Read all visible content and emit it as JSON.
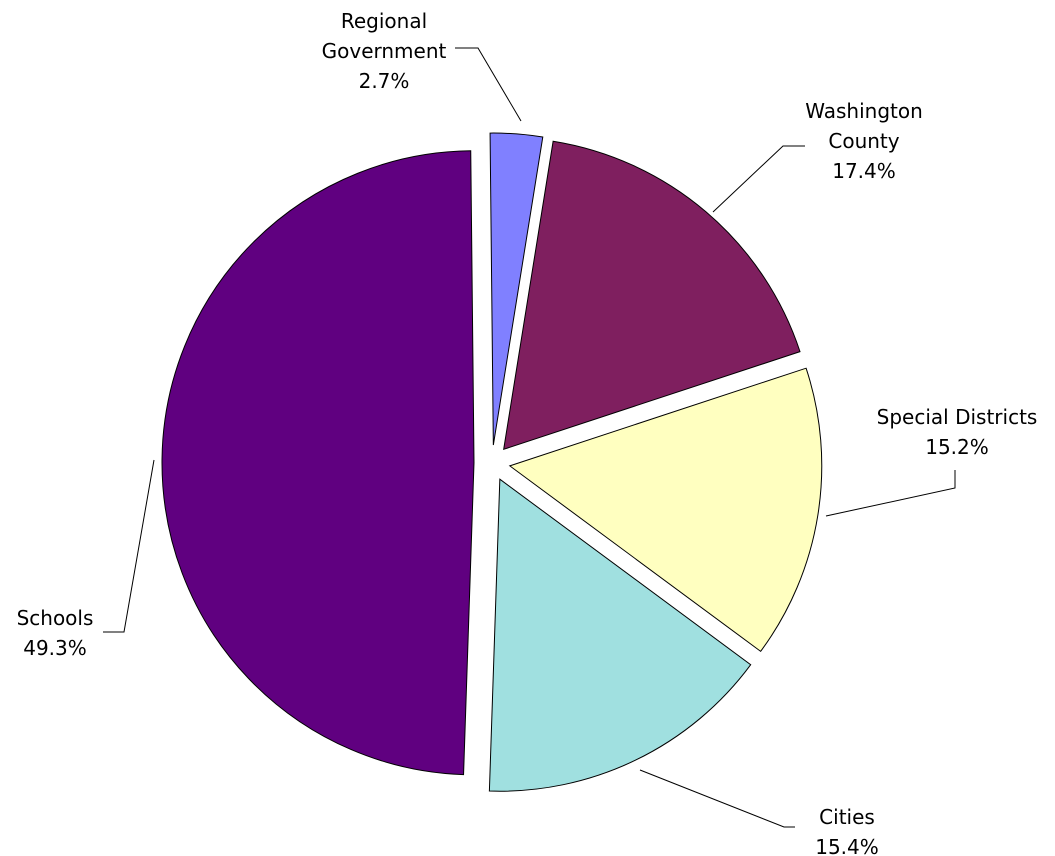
{
  "chart_data": {
    "type": "pie",
    "title": "",
    "slices": [
      {
        "label": [
          "Regional",
          "Government"
        ],
        "pct_label": "2.7%",
        "value": 2.7,
        "color": "#8080FF"
      },
      {
        "label": [
          "Washington",
          "County"
        ],
        "pct_label": "17.4%",
        "value": 17.4,
        "color": "#7F1F5F"
      },
      {
        "label": [
          "Special Districts"
        ],
        "pct_label": "15.2%",
        "value": 15.2,
        "color": "#FFFFC0"
      },
      {
        "label": [
          "Cities"
        ],
        "pct_label": "15.4%",
        "value": 15.4,
        "color": "#A0E0E0"
      },
      {
        "label": [
          "Schools"
        ],
        "pct_label": "49.3%",
        "value": 49.3,
        "color": "#600080"
      }
    ],
    "legend": "none"
  }
}
